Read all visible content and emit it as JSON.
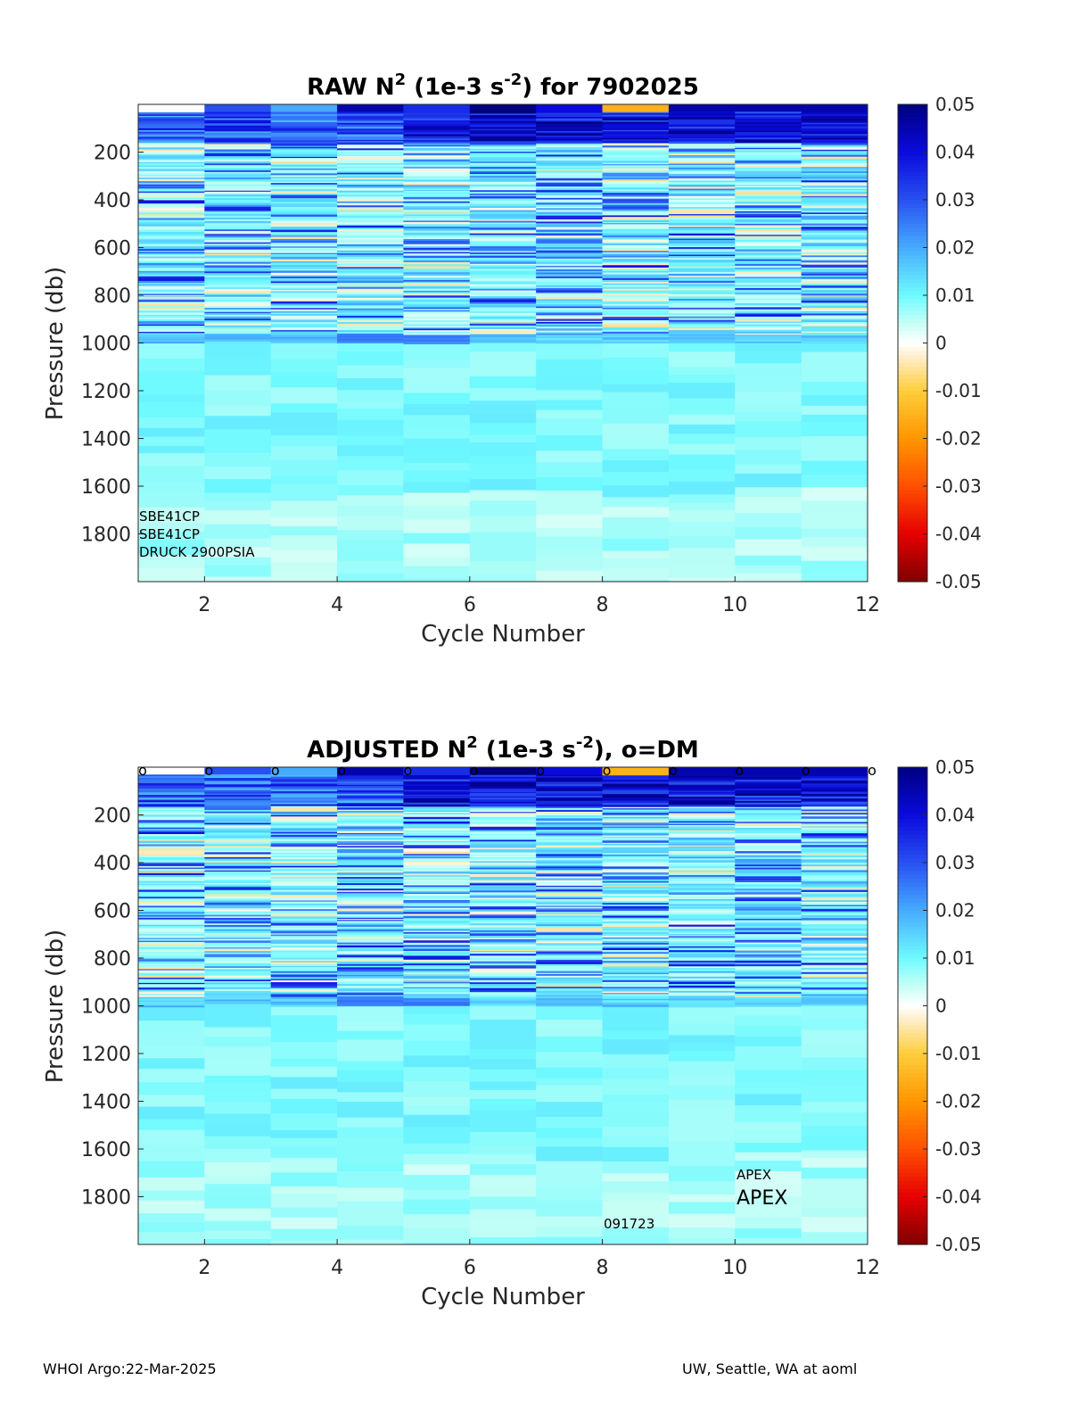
{
  "chart_data": [
    {
      "type": "heatmap",
      "title": "RAW N² (1e-3 s⁻²) for 7902025",
      "title_parts": {
        "main": "RAW N",
        "exp1": "2",
        "mid": " (1e-3 s",
        "exp2": "-2",
        "end": ") for 7902025"
      },
      "xlabel": "Cycle Number",
      "ylabel": "Pressure (db)",
      "x_ticks": [
        "2",
        "4",
        "6",
        "8",
        "10",
        "12"
      ],
      "x_tick_values": [
        2,
        4,
        6,
        8,
        10,
        12
      ],
      "y_ticks": [
        "200",
        "400",
        "600",
        "800",
        "1000",
        "1200",
        "1400",
        "1600",
        "1800"
      ],
      "y_tick_values": [
        200,
        400,
        600,
        800,
        1000,
        1200,
        1400,
        1600,
        1800
      ],
      "xlim": [
        1,
        12
      ],
      "ylim": [
        0,
        2000
      ],
      "y_reversed": true,
      "cycles": [
        1,
        2,
        3,
        4,
        5,
        6,
        7,
        8,
        9,
        10,
        11
      ],
      "colorbar": {
        "min": -0.05,
        "max": 0.05,
        "colormap": "jet-like with white at 0",
        "ticks": [
          "0.05",
          "0.04",
          "0.03",
          "0.02",
          "0.01",
          "0",
          "-0.01",
          "-0.02",
          "-0.03",
          "-0.04",
          "-0.05"
        ],
        "tick_values": [
          0.05,
          0.04,
          0.03,
          0.02,
          0.01,
          0,
          -0.01,
          -0.02,
          -0.03,
          -0.04,
          -0.05
        ]
      },
      "near_surface_values": [
        0.0,
        0.03,
        0.02,
        0.045,
        0.035,
        0.05,
        0.04,
        -0.015,
        0.045,
        0.045,
        0.045
      ],
      "annotations": [
        "SBE41CP",
        "SBE41CP",
        "DRUCK 2900PSIA"
      ]
    },
    {
      "type": "heatmap",
      "title": "ADJUSTED N² (1e-3 s⁻²), o=DM",
      "title_parts": {
        "main": "ADJUSTED N",
        "exp1": "2",
        "mid": " (1e-3 s",
        "exp2": "-2",
        "end": "), o=DM"
      },
      "xlabel": "Cycle Number",
      "ylabel": "Pressure (db)",
      "x_ticks": [
        "2",
        "4",
        "6",
        "8",
        "10",
        "12"
      ],
      "x_tick_values": [
        2,
        4,
        6,
        8,
        10,
        12
      ],
      "y_ticks": [
        "200",
        "400",
        "600",
        "800",
        "1000",
        "1200",
        "1400",
        "1600",
        "1800"
      ],
      "y_tick_values": [
        200,
        400,
        600,
        800,
        1000,
        1200,
        1400,
        1600,
        1800
      ],
      "xlim": [
        1,
        12
      ],
      "ylim": [
        0,
        2000
      ],
      "y_reversed": true,
      "cycles": [
        1,
        2,
        3,
        4,
        5,
        6,
        7,
        8,
        9,
        10,
        11
      ],
      "dm_markers": {
        "symbol": "o",
        "cycles": [
          1,
          2,
          3,
          4,
          5,
          6,
          7,
          8,
          9,
          10,
          11,
          12
        ]
      },
      "colorbar": {
        "min": -0.05,
        "max": 0.05,
        "colormap": "jet-like with white at 0",
        "ticks": [
          "0.05",
          "0.04",
          "0.03",
          "0.02",
          "0.01",
          "0",
          "-0.01",
          "-0.02",
          "-0.03",
          "-0.04",
          "-0.05"
        ],
        "tick_values": [
          0.05,
          0.04,
          0.03,
          0.02,
          0.01,
          0,
          -0.01,
          -0.02,
          -0.03,
          -0.04,
          -0.05
        ]
      },
      "near_surface_values": [
        0.0,
        0.03,
        0.02,
        0.045,
        0.035,
        0.05,
        0.04,
        -0.015,
        0.045,
        0.045,
        0.045
      ],
      "annotations": [
        "APEX",
        "APEX",
        "091723"
      ]
    }
  ],
  "footer": {
    "left": "WHOI Argo:22-Mar-2025",
    "right": "UW, Seattle, WA at aoml"
  }
}
